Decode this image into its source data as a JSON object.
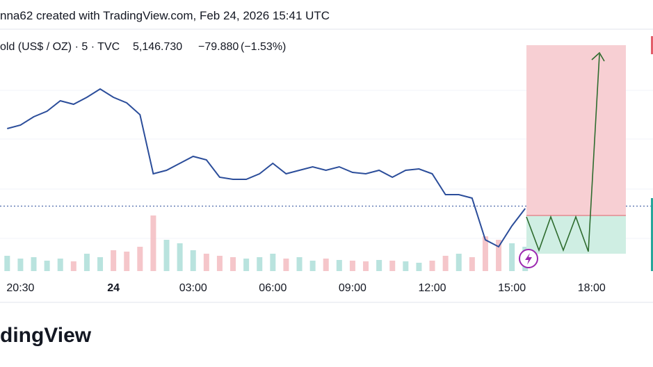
{
  "header": "nna62 created with TradingView.com, Feb 24, 2026 15:41 UTC",
  "footer": "dingView",
  "chart_data": {
    "type": "line",
    "symbol": "old (US$ / OZ) · 5 · TVC",
    "price": {
      "value": 5146.73,
      "label": "5,146.730"
    },
    "change": {
      "value": -79.88,
      "label": "−79.880"
    },
    "change_pct": {
      "value": -1.53,
      "label": "(−1.53%)"
    },
    "color": "#2b4d9a",
    "x": [
      -4,
      -3.5,
      -3,
      -2.5,
      -2,
      -1.5,
      -1,
      -0.5,
      0,
      0.5,
      1,
      1.5,
      2,
      2.5,
      3,
      3.5,
      4,
      4.5,
      5,
      5.5,
      6,
      6.5,
      7,
      7.5,
      8,
      8.5,
      9,
      9.5,
      10,
      10.5,
      11,
      11.5,
      12,
      12.5,
      13,
      13.5,
      14,
      14.5,
      15,
      15.5
    ],
    "values": [
      5202.5,
      5205,
      5211,
      5215,
      5222.5,
      5220,
      5225,
      5231,
      5225,
      5221,
      5212.5,
      5170,
      5172.5,
      5177.5,
      5182.5,
      5180,
      5167.5,
      5166,
      5166,
      5170,
      5177.5,
      5170,
      5172.5,
      5175,
      5172.5,
      5175,
      5171,
      5170,
      5172.5,
      5167.5,
      5172.5,
      5173.5,
      5170,
      5155,
      5155,
      5152.5,
      5122.5,
      5117.5,
      5132.5,
      5145
    ],
    "volume": [
      22,
      18,
      20,
      15,
      18,
      14,
      25,
      20,
      30,
      28,
      35,
      80,
      45,
      40,
      30,
      25,
      22,
      20,
      18,
      20,
      25,
      18,
      20,
      15,
      18,
      16,
      15,
      14,
      16,
      15,
      14,
      12,
      15,
      22,
      25,
      20,
      50,
      45,
      40,
      35
    ],
    "xlim": [
      -4.27,
      20.31
    ],
    "ylim": [
      5100,
      5275
    ],
    "vlim": [
      0,
      100
    ],
    "xticks": [
      {
        "value": -3.5,
        "label": "20:30"
      },
      {
        "value": 0,
        "label": "24"
      },
      {
        "value": 3,
        "label": "03:00"
      },
      {
        "value": 6,
        "label": "06:00"
      },
      {
        "value": 9,
        "label": "09:00"
      },
      {
        "value": 12,
        "label": "12:00"
      },
      {
        "value": 15,
        "label": "15:00"
      },
      {
        "value": 18,
        "label": "18:00"
      }
    ]
  }
}
